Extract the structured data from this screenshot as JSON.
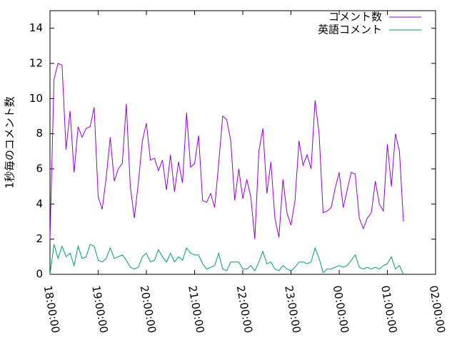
{
  "chart_data": {
    "type": "line",
    "ylabel": "1秒毎のコメント数",
    "x": [
      "18:00:00",
      "18:05:00",
      "18:10:00",
      "18:15:00",
      "18:20:00",
      "18:25:00",
      "18:30:00",
      "18:35:00",
      "18:40:00",
      "18:45:00",
      "18:50:00",
      "18:55:00",
      "19:00:00",
      "19:05:00",
      "19:10:00",
      "19:15:00",
      "19:20:00",
      "19:25:00",
      "19:30:00",
      "19:35:00",
      "19:40:00",
      "19:45:00",
      "19:50:00",
      "19:55:00",
      "20:00:00",
      "20:05:00",
      "20:10:00",
      "20:15:00",
      "20:20:00",
      "20:25:00",
      "20:30:00",
      "20:35:00",
      "20:40:00",
      "20:45:00",
      "20:50:00",
      "20:55:00",
      "21:00:00",
      "21:05:00",
      "21:10:00",
      "21:15:00",
      "21:20:00",
      "21:25:00",
      "21:30:00",
      "21:35:00",
      "21:40:00",
      "21:45:00",
      "21:50:00",
      "21:55:00",
      "22:00:00",
      "22:05:00",
      "22:10:00",
      "22:15:00",
      "22:20:00",
      "22:25:00",
      "22:30:00",
      "22:35:00",
      "22:40:00",
      "22:45:00",
      "22:50:00",
      "22:55:00",
      "23:00:00",
      "23:05:00",
      "23:10:00",
      "23:15:00",
      "23:20:00",
      "23:25:00",
      "23:30:00",
      "23:35:00",
      "23:40:00",
      "23:45:00",
      "23:50:00",
      "23:55:00",
      "00:00:00",
      "00:05:00",
      "00:10:00",
      "00:15:00",
      "00:20:00",
      "00:25:00",
      "00:30:00",
      "00:35:00",
      "00:40:00",
      "00:45:00",
      "00:50:00",
      "00:55:00",
      "01:00:00",
      "01:05:00",
      "01:10:00",
      "01:15:00",
      "01:20:00"
    ],
    "series": [
      {
        "name": "コメント数",
        "color": "#9400d3",
        "values": [
          2,
          11.1,
          12,
          11.9,
          7.1,
          9.3,
          5.8,
          8.4,
          7.8,
          8.3,
          8.4,
          9.5,
          4.4,
          3.7,
          5.5,
          7.8,
          5.3,
          6,
          6.3,
          9.7,
          5,
          3.2,
          5.2,
          7.6,
          8.6,
          6.5,
          6.6,
          5.9,
          6.5,
          4.8,
          6.8,
          4.7,
          6.4,
          5.2,
          9.2,
          6.1,
          6.3,
          7.9,
          4.2,
          4.1,
          4.6,
          3.8,
          6.3,
          9,
          8.8,
          7.6,
          4.2,
          6,
          4.3,
          5.4,
          4.4,
          2,
          7,
          8.3,
          4.6,
          6.4,
          3.2,
          2.1,
          5.4,
          3.5,
          2.8,
          4.2,
          7.6,
          6.2,
          6.8,
          6,
          9.9,
          8,
          3.5,
          3.6,
          3.8,
          4.9,
          5.8,
          3.8,
          4.8,
          5.8,
          5.7,
          3.2,
          2.6,
          3.2,
          3.5,
          5.3,
          4,
          3.6,
          7.4,
          5,
          8,
          7,
          3
        ]
      },
      {
        "name": "英語コメント",
        "color": "#009e73",
        "values": [
          0,
          1.7,
          0.9,
          1.6,
          1,
          1.2,
          0.5,
          1.6,
          0.9,
          1,
          1.7,
          1.6,
          0.8,
          0.7,
          0.9,
          1.5,
          0.9,
          1,
          1.1,
          0.8,
          0.4,
          0.3,
          0.4,
          1,
          1.2,
          0.7,
          0.8,
          1.4,
          1,
          0.7,
          1.2,
          0.7,
          1,
          0.8,
          1.5,
          1.2,
          1.1,
          1.1,
          0.6,
          0.3,
          0.4,
          0.5,
          1.2,
          0.3,
          0.2,
          0.7,
          0.7,
          0.7,
          0.3,
          0.3,
          0.5,
          0.2,
          0.7,
          1.3,
          0.6,
          0.7,
          0.3,
          0.2,
          0.5,
          0.3,
          0.2,
          0.4,
          0.7,
          0.7,
          0.6,
          0.7,
          1.5,
          0.9,
          0.1,
          0.3,
          0.3,
          0.4,
          0.5,
          0.4,
          0.5,
          0.8,
          1.1,
          0.4,
          0.3,
          0.4,
          0.3,
          0.4,
          0.3,
          0.5,
          0.6,
          1,
          0.3,
          0.5,
          0
        ]
      }
    ],
    "xlim": [
      "18:00:00",
      "02:00:00"
    ],
    "xticks": [
      "18:00:00",
      "19:00:00",
      "20:00:00",
      "21:00:00",
      "22:00:00",
      "23:00:00",
      "00:00:00",
      "01:00:00",
      "02:00:00"
    ],
    "ylim": [
      0,
      15
    ],
    "yticks": [
      0,
      2,
      4,
      6,
      8,
      10,
      12,
      14
    ],
    "legend": "top-right"
  }
}
